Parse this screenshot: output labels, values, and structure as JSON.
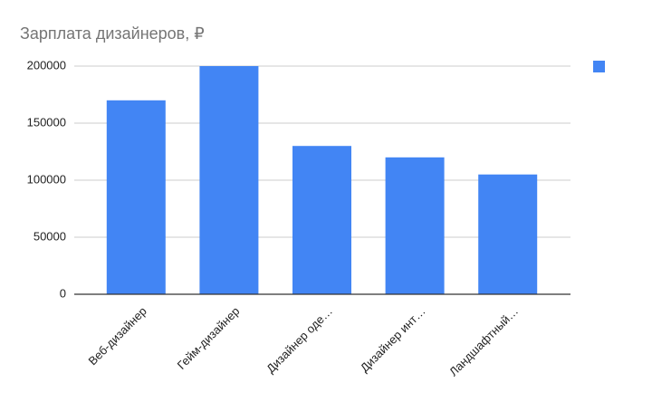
{
  "chart_data": {
    "type": "bar",
    "title": "Зарплата дизайнеров, ₽",
    "categories": [
      "Веб-дизайнер",
      "Гейм-дизайнер",
      "Дизайнер оде…",
      "Дизайнер инт…",
      "Ландшафтный…"
    ],
    "series": [
      {
        "color": "#4285f4",
        "values": [
          170000,
          200000,
          130000,
          120000,
          105000
        ]
      }
    ],
    "ylim": [
      0,
      200000
    ],
    "yticks": [
      0,
      50000,
      100000,
      150000,
      200000
    ],
    "grid": true,
    "legend": "right"
  }
}
